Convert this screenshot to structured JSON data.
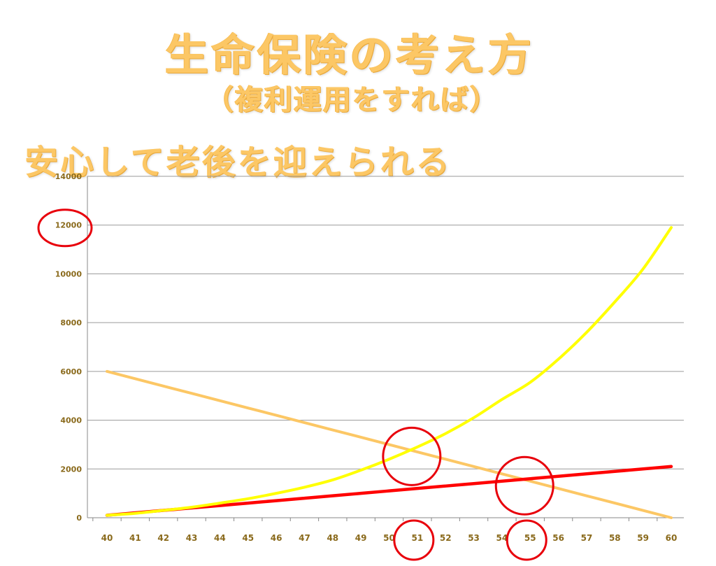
{
  "title": "生命保険の考え方",
  "subtitle": "（複利運用をすれば）",
  "slogan": "安心して老後を迎えられる",
  "colors": {
    "title": "#FCC765",
    "yellow_series": "#FFFF00",
    "orange_series": "#FCC765",
    "red_series": "#FF0000",
    "grid": "#9a9a9a",
    "highlight_circle": "#E8000B"
  },
  "chart_data": {
    "type": "line",
    "x": [
      40,
      41,
      42,
      43,
      44,
      45,
      46,
      47,
      48,
      49,
      50,
      51,
      52,
      53,
      54,
      55,
      56,
      57,
      58,
      59,
      60
    ],
    "ylim": [
      0,
      14000
    ],
    "yticks": [
      0,
      2000,
      4000,
      6000,
      8000,
      10000,
      12000,
      14000
    ],
    "grid": true,
    "series": [
      {
        "color": "yellow",
        "values": [
          100,
          180,
          300,
          430,
          600,
          780,
          1000,
          1250,
          1550,
          1950,
          2400,
          2900,
          3450,
          4100,
          4850,
          5550,
          6500,
          7600,
          8850,
          10200,
          11900
        ]
      },
      {
        "color": "orange",
        "values": [
          6000,
          5700,
          5400,
          5100,
          4800,
          4500,
          4200,
          3900,
          3600,
          3300,
          3000,
          2700,
          2400,
          2100,
          1800,
          1500,
          1200,
          900,
          600,
          300,
          0
        ]
      },
      {
        "color": "red",
        "values": [
          100,
          200,
          300,
          400,
          500,
          600,
          700,
          800,
          900,
          1000,
          1100,
          1200,
          1300,
          1400,
          1500,
          1600,
          1700,
          1800,
          1900,
          2000,
          2100
        ]
      }
    ],
    "highlights": [
      {
        "at": "y-tick",
        "value": 12000
      },
      {
        "at": "point",
        "x": 51,
        "y": 2800
      },
      {
        "at": "point",
        "x": 55,
        "y": 1600
      },
      {
        "at": "x-tick",
        "value": 51
      },
      {
        "at": "x-tick",
        "value": 55
      }
    ]
  }
}
